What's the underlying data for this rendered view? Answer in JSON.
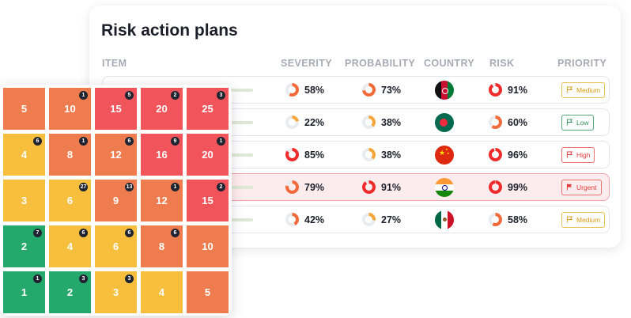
{
  "title": "Risk action plans",
  "headers": {
    "item": "ITEM",
    "severity": "SEVERITY",
    "probability": "PROBABILITY",
    "country": "COUNTRY",
    "risk": "RISK",
    "priority": "PRIORITY"
  },
  "rows": [
    {
      "severity": "58%",
      "probability": "73%",
      "country_flag": "afghanistan-flag",
      "risk": "91%",
      "priority": "Medium"
    },
    {
      "severity": "22%",
      "probability": "38%",
      "country_flag": "bangladesh-flag",
      "risk": "60%",
      "priority": "Low"
    },
    {
      "severity": "85%",
      "probability": "38%",
      "country_flag": "china-flag",
      "risk": "96%",
      "priority": "High"
    },
    {
      "severity": "79%",
      "probability": "91%",
      "country_flag": "india-flag",
      "risk": "99%",
      "priority": "Urgent"
    },
    {
      "severity": "42%",
      "probability": "27%",
      "country_flag": "mexico-flag",
      "risk": "58%",
      "priority": "Medium"
    }
  ],
  "matrix": [
    [
      {
        "value": "5",
        "count": ""
      },
      {
        "value": "10",
        "count": "1"
      },
      {
        "value": "15",
        "count": "5"
      },
      {
        "value": "20",
        "count": "2"
      },
      {
        "value": "25",
        "count": "3"
      }
    ],
    [
      {
        "value": "4",
        "count": "6"
      },
      {
        "value": "8",
        "count": "1"
      },
      {
        "value": "12",
        "count": "6"
      },
      {
        "value": "16",
        "count": "9"
      },
      {
        "value": "20",
        "count": "1"
      }
    ],
    [
      {
        "value": "3",
        "count": ""
      },
      {
        "value": "6",
        "count": "27"
      },
      {
        "value": "9",
        "count": "13"
      },
      {
        "value": "12",
        "count": "1"
      },
      {
        "value": "15",
        "count": "2"
      }
    ],
    [
      {
        "value": "2",
        "count": "7"
      },
      {
        "value": "4",
        "count": "6"
      },
      {
        "value": "6",
        "count": "6"
      },
      {
        "value": "8",
        "count": "6"
      },
      {
        "value": "10",
        "count": ""
      }
    ],
    [
      {
        "value": "1",
        "count": "1"
      },
      {
        "value": "2",
        "count": "3"
      },
      {
        "value": "3",
        "count": "3"
      },
      {
        "value": "4",
        "count": ""
      },
      {
        "value": "5",
        "count": ""
      }
    ]
  ],
  "colors": {
    "red": "#f1545a",
    "orange": "#ef7c4e",
    "yellow": "#f8bf3f",
    "green": "#25a86b"
  }
}
